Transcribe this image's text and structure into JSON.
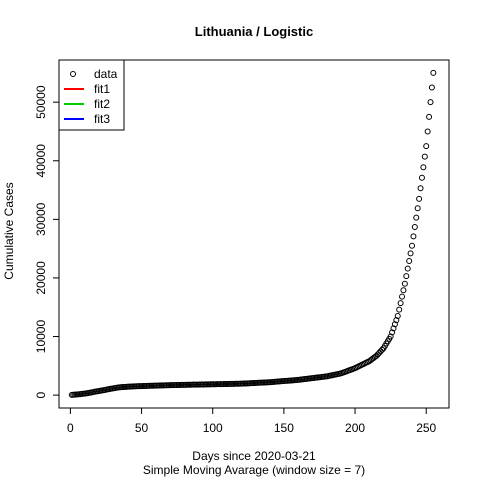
{
  "chart_data": {
    "type": "scatter",
    "title": "Lithuania / Logistic",
    "xlabel": "Days since 2020-03-21",
    "xlabel2": "Simple Moving Avarage (window size = 7)",
    "ylabel": "Cumulative Cases",
    "xlim": [
      -8,
      266
    ],
    "ylim": [
      -2200,
      57200
    ],
    "xticks": [
      0,
      50,
      100,
      150,
      200,
      250
    ],
    "yticks": [
      0,
      10000,
      20000,
      30000,
      40000,
      50000
    ],
    "xtick_labels": [
      "0",
      "50",
      "100",
      "150",
      "200",
      "250"
    ],
    "ytick_labels": [
      "0",
      "10000",
      "20000",
      "30000",
      "40000",
      "50000"
    ],
    "legend": {
      "position": "top-left",
      "entries": [
        {
          "label": "data",
          "symbol": "circle",
          "color": "#000000"
        },
        {
          "label": "fit1",
          "symbol": "line",
          "color": "#ff0000"
        },
        {
          "label": "fit2",
          "symbol": "line",
          "color": "#00cd00"
        },
        {
          "label": "fit3",
          "symbol": "line",
          "color": "#0000ff"
        }
      ]
    },
    "series": [
      {
        "name": "data",
        "x_start": 1,
        "x_end": 255,
        "anchors": [
          [
            1,
            30
          ],
          [
            10,
            250
          ],
          [
            20,
            700
          ],
          [
            30,
            1150
          ],
          [
            35,
            1350
          ],
          [
            45,
            1500
          ],
          [
            70,
            1700
          ],
          [
            100,
            1850
          ],
          [
            120,
            1950
          ],
          [
            140,
            2200
          ],
          [
            160,
            2600
          ],
          [
            180,
            3200
          ],
          [
            190,
            3700
          ],
          [
            200,
            4600
          ],
          [
            210,
            5800
          ],
          [
            215,
            6700
          ],
          [
            220,
            8000
          ],
          [
            225,
            10000
          ],
          [
            230,
            13500
          ],
          [
            235,
            19000
          ],
          [
            240,
            25500
          ],
          [
            245,
            33500
          ],
          [
            250,
            42500
          ],
          [
            255,
            55000
          ]
        ]
      }
    ]
  }
}
